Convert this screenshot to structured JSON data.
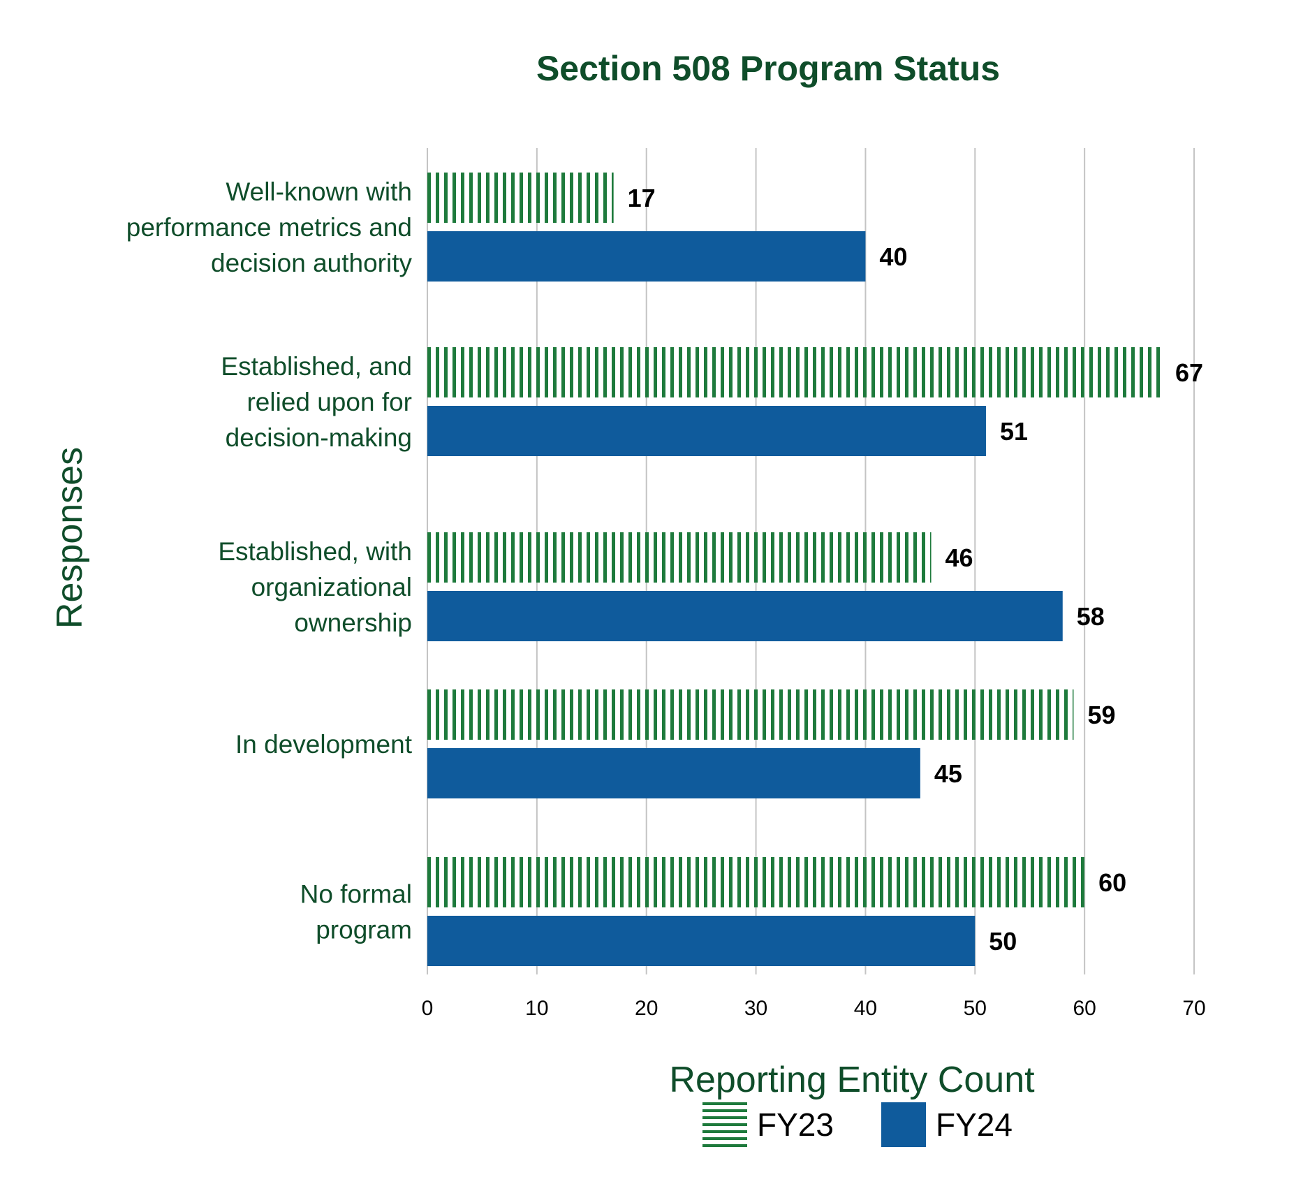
{
  "chart_data": {
    "type": "bar",
    "orientation": "horizontal",
    "title": "Section 508 Program Status",
    "xlabel": "Reporting Entity Count",
    "ylabel": "Responses",
    "xlim": [
      0,
      70
    ],
    "x_ticks": [
      0,
      10,
      20,
      30,
      40,
      50,
      60,
      70
    ],
    "grid": "vertical",
    "legend_position": "bottom",
    "categories": [
      [
        "Well-known with",
        "performance metrics and",
        "decision authority"
      ],
      [
        "Established, and",
        "relied upon for",
        "decision-making"
      ],
      [
        "Established, with",
        "organizational",
        "ownership"
      ],
      [
        "In development"
      ],
      [
        "No formal",
        "program"
      ]
    ],
    "series": [
      {
        "name": "FY23",
        "values": [
          17,
          67,
          46,
          59,
          60
        ],
        "color": "#1e7a3c",
        "pattern": "vertical-stripes"
      },
      {
        "name": "FY24",
        "values": [
          40,
          51,
          58,
          45,
          50
        ],
        "color": "#0f5b9c",
        "pattern": "solid"
      }
    ]
  },
  "colors": {
    "text": "#0f4d2a",
    "grid": "#c4c4c4",
    "value_text": "#000000"
  }
}
